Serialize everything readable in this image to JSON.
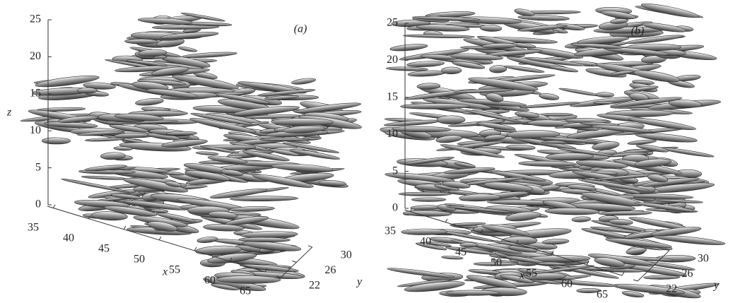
{
  "chart_data": [
    {
      "type": "isosurface3d",
      "label": "(a)",
      "xlabel": "x",
      "ylabel": "y",
      "zlabel": "z",
      "xlim": [
        35,
        65
      ],
      "xticks": [
        35,
        40,
        45,
        50,
        55,
        60,
        65
      ],
      "ylim": [
        22,
        30
      ],
      "yticks": [
        22,
        26,
        30
      ],
      "zlim": [
        0,
        25
      ],
      "zticks": [
        0,
        5,
        10,
        15,
        20,
        25
      ]
    },
    {
      "type": "isosurface3d",
      "label": "(b)",
      "xlabel": "x",
      "ylabel": "y",
      "xlim": [
        35,
        65
      ],
      "xticks": [
        35,
        40,
        45,
        50,
        55,
        60,
        65
      ],
      "ylim": [
        22,
        30
      ],
      "yticks": [
        22,
        26,
        30
      ],
      "zlim": [
        0,
        25
      ],
      "zticks": [
        0,
        5,
        10,
        15,
        20,
        25
      ]
    }
  ]
}
